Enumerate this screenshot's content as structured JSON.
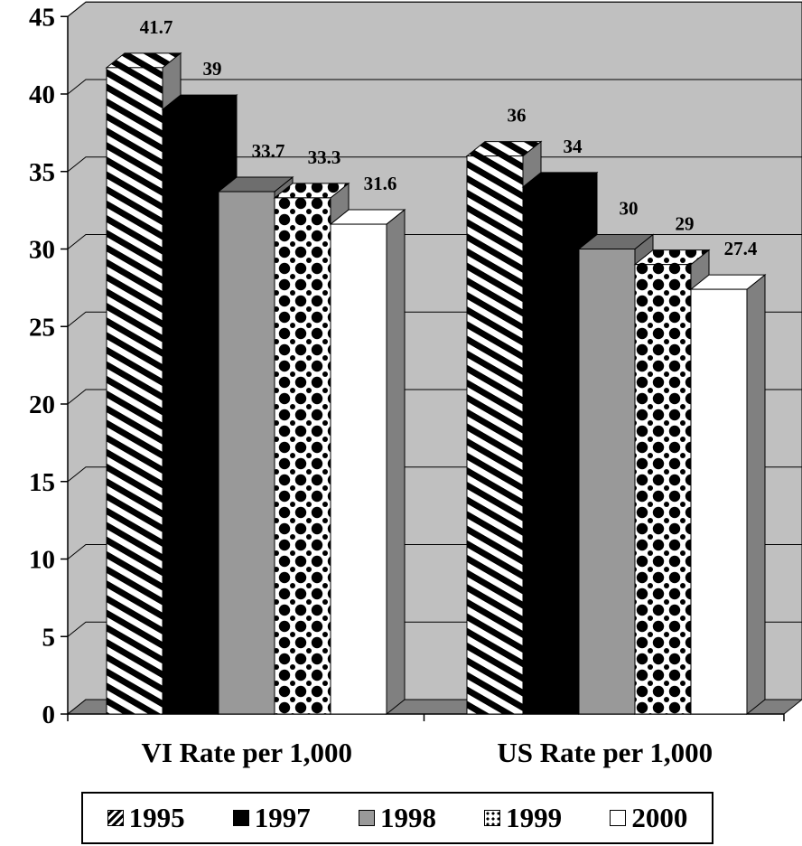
{
  "chart_data": {
    "type": "bar",
    "categories": [
      "VI Rate per 1,000",
      "US Rate per 1,000"
    ],
    "series": [
      {
        "name": "1995",
        "values": [
          41.7,
          36
        ],
        "labels": [
          "41.7",
          "36"
        ],
        "pattern": "diagonal-stripes",
        "color": "#000000"
      },
      {
        "name": "1997",
        "values": [
          39,
          34
        ],
        "labels": [
          "39",
          "34"
        ],
        "pattern": "solid",
        "color": "#000000"
      },
      {
        "name": "1998",
        "values": [
          33.7,
          30
        ],
        "labels": [
          "33.7",
          "30"
        ],
        "pattern": "solid",
        "color": "#999999"
      },
      {
        "name": "1999",
        "values": [
          33.3,
          29
        ],
        "labels": [
          "33.3",
          "29"
        ],
        "pattern": "dots",
        "color": "#000000"
      },
      {
        "name": "2000",
        "values": [
          31.6,
          27.4
        ],
        "labels": [
          "31.6",
          "27.4"
        ],
        "pattern": "solid",
        "color": "#ffffff"
      }
    ],
    "yticks": [
      "0",
      "5",
      "10",
      "15",
      "20",
      "25",
      "30",
      "35",
      "40",
      "45"
    ],
    "ylim": [
      0,
      45
    ],
    "grid": true,
    "three_d": true,
    "legend_position": "bottom",
    "wall_color": "#c0c0c0",
    "floor_color": "#808080"
  }
}
